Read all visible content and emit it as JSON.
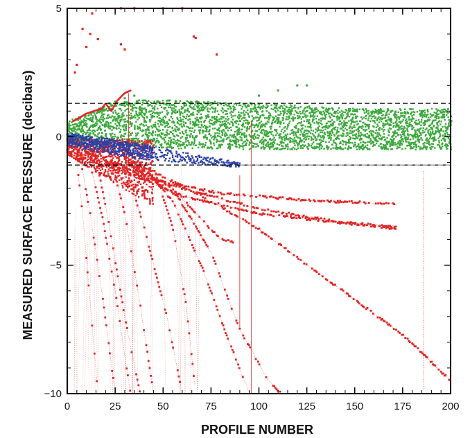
{
  "chart_data": {
    "type": "scatter",
    "title": "",
    "xlabel": "PROFILE NUMBER",
    "ylabel": "MEASURED SURFACE PRESSURE (decibars)",
    "xlim": [
      0,
      200
    ],
    "ylim": [
      -10,
      5
    ],
    "x_ticks": [
      0,
      25,
      50,
      75,
      100,
      125,
      150,
      175,
      200
    ],
    "y_ticks": [
      -10,
      -5,
      0,
      5
    ],
    "grid": false,
    "legend": "none",
    "reference_lines": [
      {
        "y": 1.3,
        "style": "dashed",
        "color": "#000000"
      },
      {
        "y": -1.1,
        "style": "dashed",
        "color": "#000000"
      },
      {
        "y": -1.1,
        "style": "dashed",
        "color": "#9a9a9a",
        "x_range": [
          90,
          200
        ]
      }
    ],
    "series": [
      {
        "color": "#3aa83a",
        "description_type": "band",
        "x_range": [
          0,
          200
        ],
        "center": [
          [
            0,
            0.1
          ],
          [
            25,
            0.5
          ],
          [
            50,
            0.5
          ],
          [
            100,
            0.4
          ],
          [
            150,
            0.3
          ],
          [
            200,
            0.3
          ]
        ],
        "halfwidth": [
          [
            0,
            0.5
          ],
          [
            25,
            0.9
          ],
          [
            50,
            0.95
          ],
          [
            100,
            0.9
          ],
          [
            150,
            0.8
          ],
          [
            200,
            0.8
          ]
        ],
        "outliers": [
          [
            22,
            1.3
          ],
          [
            30,
            1.5
          ],
          [
            35,
            1.6
          ],
          [
            100,
            1.6
          ],
          [
            110,
            1.8
          ],
          [
            120,
            2.0
          ],
          [
            125,
            2.0
          ]
        ]
      },
      {
        "color": "#2a3fa8",
        "description_type": "band",
        "x_range": [
          0,
          90
        ],
        "center": [
          [
            0,
            -0.1
          ],
          [
            20,
            -0.35
          ],
          [
            40,
            -0.6
          ],
          [
            60,
            -0.8
          ],
          [
            75,
            -0.95
          ],
          [
            90,
            -1.1
          ]
        ],
        "halfwidth": [
          [
            0,
            0.25
          ],
          [
            20,
            0.3
          ],
          [
            40,
            0.3
          ],
          [
            60,
            0.2
          ],
          [
            90,
            0.1
          ]
        ]
      },
      {
        "color": "#e02424",
        "description_type": "drift_tracks",
        "tracks": [
          [
            [
              5,
              -0.2
            ],
            [
              40,
              -1.6
            ],
            [
              80,
              -2.2
            ],
            [
              130,
              -2.5
            ],
            [
              172,
              -2.6
            ]
          ],
          [
            [
              10,
              -0.6
            ],
            [
              50,
              -1.8
            ],
            [
              100,
              -2.8
            ],
            [
              140,
              -3.3
            ],
            [
              172,
              -3.5
            ]
          ],
          [
            [
              20,
              -1.0
            ],
            [
              60,
              -2.3
            ],
            [
              100,
              -3.0
            ],
            [
              150,
              -3.4
            ],
            [
              172,
              -3.6
            ]
          ],
          [
            [
              30,
              -0.8
            ],
            [
              70,
              -2.3
            ],
            [
              100,
              -3.6
            ],
            [
              140,
              -5.8
            ],
            [
              175,
              -7.7
            ],
            [
              200,
              -9.5
            ]
          ],
          [
            [
              30,
              -1.0
            ],
            [
              60,
              -2.4
            ],
            [
              75,
              -3.6
            ],
            [
              80,
              -4.0
            ],
            [
              88,
              -4.1
            ]
          ],
          [
            [
              30,
              -0.9
            ],
            [
              55,
              -2.0
            ],
            [
              75,
              -4.5
            ],
            [
              90,
              -7.5
            ],
            [
              105,
              -9.5
            ],
            [
              112,
              -10
            ]
          ],
          [
            [
              40,
              -1.2
            ],
            [
              55,
              -2.5
            ],
            [
              70,
              -5.0
            ],
            [
              82,
              -7.5
            ],
            [
              95,
              -10
            ]
          ],
          [
            [
              6,
              -0.5
            ],
            [
              12,
              -3.0
            ],
            [
              18,
              -6.0
            ],
            [
              25,
              -10
            ]
          ],
          [
            [
              10,
              -0.4
            ],
            [
              18,
              -3.0
            ],
            [
              25,
              -6.0
            ],
            [
              33,
              -10
            ]
          ],
          [
            [
              15,
              -0.8
            ],
            [
              22,
              -3.5
            ],
            [
              30,
              -7.0
            ],
            [
              38,
              -10
            ]
          ],
          [
            [
              22,
              -0.6
            ],
            [
              30,
              -3.0
            ],
            [
              38,
              -6.5
            ],
            [
              45,
              -10
            ]
          ],
          [
            [
              30,
              -1.0
            ],
            [
              40,
              -3.5
            ],
            [
              52,
              -7.0
            ],
            [
              60,
              -10
            ]
          ],
          [
            [
              45,
              -1.2
            ],
            [
              55,
              -3.5
            ],
            [
              62,
              -6.5
            ],
            [
              67,
              -10
            ]
          ],
          [
            [
              4,
              -0.3
            ],
            [
              8,
              -3.0
            ],
            [
              12,
              -6.5
            ],
            [
              16,
              -10
            ]
          ]
        ],
        "high_points": [
          [
            8,
            4.2
          ],
          [
            12,
            4.0
          ],
          [
            13,
            4.8
          ],
          [
            16,
            3.8
          ],
          [
            10,
            3.5
          ],
          [
            5,
            2.8
          ],
          [
            4,
            2.5
          ],
          [
            28,
            3.6
          ],
          [
            30,
            3.4
          ],
          [
            66,
            3.9
          ],
          [
            67,
            3.85
          ],
          [
            78,
            3.2
          ],
          [
            28,
            5.0
          ],
          [
            35,
            5.0
          ],
          [
            50,
            5.0
          ],
          [
            60,
            5.0
          ]
        ],
        "bump_curve": [
          [
            3,
            0.6
          ],
          [
            10,
            0.9
          ],
          [
            18,
            1.1
          ],
          [
            20,
            1.3
          ],
          [
            23,
            1.0
          ],
          [
            26,
            1.4
          ],
          [
            30,
            1.7
          ],
          [
            33,
            1.8
          ]
        ],
        "spikes": [
          [
            32,
            -1.0,
            1.7
          ],
          [
            96,
            -10,
            0.6
          ],
          [
            186,
            -9.8,
            -1.3
          ],
          [
            90,
            -7.5,
            -1.5
          ]
        ]
      }
    ]
  }
}
